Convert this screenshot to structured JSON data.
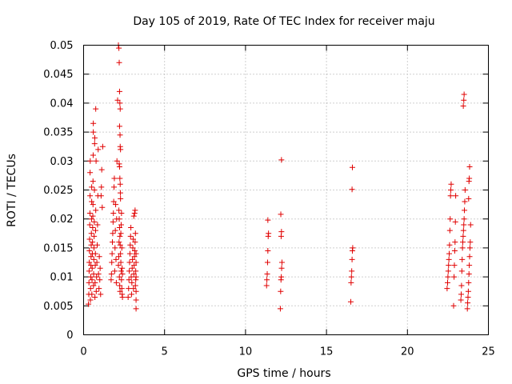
{
  "chart_data": {
    "type": "scatter",
    "title": "Day 105 of 2019, Rate Of TEC Index for receiver maju",
    "xlabel": "GPS time / hours",
    "ylabel": "ROTI / TECUs",
    "xlim": [
      0,
      25
    ],
    "ylim": [
      0,
      0.05
    ],
    "xticks": [
      0,
      5,
      10,
      15,
      20,
      25
    ],
    "xtick_labels": [
      "0",
      "5",
      "10",
      "15",
      "20",
      "25"
    ],
    "yticks": [
      0,
      0.005,
      0.01,
      0.015,
      0.02,
      0.025,
      0.03,
      0.035,
      0.04,
      0.045,
      0.05
    ],
    "ytick_labels": [
      "0",
      "0.005",
      "0.01",
      "0.015",
      "0.02",
      "0.025",
      "0.03",
      "0.035",
      "0.04",
      "0.045",
      "0.05"
    ],
    "grid": true,
    "marker": "+",
    "color": "#e00000",
    "series": [
      {
        "name": "ROTI",
        "points": [
          [
            0.3,
            0.0053
          ],
          [
            0.32,
            0.007
          ],
          [
            0.33,
            0.009
          ],
          [
            0.34,
            0.011
          ],
          [
            0.35,
            0.0125
          ],
          [
            0.36,
            0.0145
          ],
          [
            0.37,
            0.0165
          ],
          [
            0.38,
            0.019
          ],
          [
            0.39,
            0.021
          ],
          [
            0.4,
            0.024
          ],
          [
            0.4,
            0.028
          ],
          [
            0.41,
            0.03
          ],
          [
            0.42,
            0.006
          ],
          [
            0.43,
            0.008
          ],
          [
            0.44,
            0.01
          ],
          [
            0.45,
            0.012
          ],
          [
            0.46,
            0.0135
          ],
          [
            0.47,
            0.0155
          ],
          [
            0.48,
            0.0175
          ],
          [
            0.49,
            0.02
          ],
          [
            0.5,
            0.023
          ],
          [
            0.5,
            0.0255
          ],
          [
            0.51,
            0.007
          ],
          [
            0.52,
            0.0095
          ],
          [
            0.53,
            0.0115
          ],
          [
            0.54,
            0.014
          ],
          [
            0.55,
            0.016
          ],
          [
            0.56,
            0.0185
          ],
          [
            0.57,
            0.0205
          ],
          [
            0.58,
            0.0225
          ],
          [
            0.58,
            0.0265
          ],
          [
            0.59,
            0.031
          ],
          [
            0.6,
            0.035
          ],
          [
            0.6,
            0.0365
          ],
          [
            0.61,
            0.0085
          ],
          [
            0.62,
            0.0105
          ],
          [
            0.63,
            0.013
          ],
          [
            0.64,
            0.015
          ],
          [
            0.65,
            0.017
          ],
          [
            0.66,
            0.0195
          ],
          [
            0.67,
            0.025
          ],
          [
            0.68,
            0.033
          ],
          [
            0.69,
            0.034
          ],
          [
            0.7,
            0.0065
          ],
          [
            0.71,
            0.009
          ],
          [
            0.72,
            0.012
          ],
          [
            0.73,
            0.014
          ],
          [
            0.74,
            0.018
          ],
          [
            0.75,
            0.0215
          ],
          [
            0.75,
            0.039
          ],
          [
            0.77,
            0.03
          ],
          [
            0.78,
            0.0075
          ],
          [
            0.8,
            0.01
          ],
          [
            0.82,
            0.0125
          ],
          [
            0.84,
            0.0155
          ],
          [
            0.86,
            0.019
          ],
          [
            0.88,
            0.024
          ],
          [
            0.9,
            0.032
          ],
          [
            0.92,
            0.0105
          ],
          [
            0.95,
            0.008
          ],
          [
            0.97,
            0.0135
          ],
          [
            1.0,
            0.0095
          ],
          [
            1.02,
            0.0115
          ],
          [
            1.05,
            0.007
          ],
          [
            1.08,
            0.024
          ],
          [
            1.1,
            0.0255
          ],
          [
            1.12,
            0.0285
          ],
          [
            1.15,
            0.022
          ],
          [
            1.18,
            0.0325
          ],
          [
            1.7,
            0.0095
          ],
          [
            1.72,
            0.0105
          ],
          [
            1.74,
            0.0125
          ],
          [
            1.76,
            0.014
          ],
          [
            1.78,
            0.016
          ],
          [
            1.8,
            0.0175
          ],
          [
            1.82,
            0.0195
          ],
          [
            1.84,
            0.021
          ],
          [
            1.86,
            0.023
          ],
          [
            1.88,
            0.0255
          ],
          [
            1.9,
            0.027
          ],
          [
            1.92,
            0.011
          ],
          [
            1.94,
            0.015
          ],
          [
            1.96,
            0.018
          ],
          [
            1.98,
            0.0225
          ],
          [
            2.0,
            0.013
          ],
          [
            2.02,
            0.009
          ],
          [
            2.04,
            0.02
          ],
          [
            2.06,
            0.03
          ],
          [
            2.1,
            0.0405
          ],
          [
            2.15,
            0.05
          ],
          [
            2.18,
            0.0495
          ],
          [
            2.2,
            0.047
          ],
          [
            2.22,
            0.042
          ],
          [
            2.24,
            0.04
          ],
          [
            2.26,
            0.039
          ],
          [
            2.22,
            0.036
          ],
          [
            2.25,
            0.0345
          ],
          [
            2.26,
            0.0325
          ],
          [
            2.28,
            0.032
          ],
          [
            2.2,
            0.0295
          ],
          [
            2.22,
            0.029
          ],
          [
            2.24,
            0.027
          ],
          [
            2.26,
            0.026
          ],
          [
            2.27,
            0.0245
          ],
          [
            2.28,
            0.0235
          ],
          [
            2.18,
            0.0215
          ],
          [
            2.2,
            0.02
          ],
          [
            2.22,
            0.0185
          ],
          [
            2.24,
            0.017
          ],
          [
            2.26,
            0.0155
          ],
          [
            2.28,
            0.014
          ],
          [
            2.3,
            0.0125
          ],
          [
            2.32,
            0.011
          ],
          [
            2.34,
            0.0095
          ],
          [
            2.36,
            0.008
          ],
          [
            2.38,
            0.007
          ],
          [
            2.4,
            0.0065
          ],
          [
            2.15,
            0.012
          ],
          [
            2.17,
            0.0135
          ],
          [
            2.19,
            0.016
          ],
          [
            2.21,
            0.01
          ],
          [
            2.23,
            0.0085
          ],
          [
            2.25,
            0.0075
          ],
          [
            2.3,
            0.0175
          ],
          [
            2.32,
            0.019
          ],
          [
            2.34,
            0.021
          ],
          [
            2.36,
            0.015
          ],
          [
            2.38,
            0.0115
          ],
          [
            2.4,
            0.0105
          ],
          [
            2.75,
            0.0065
          ],
          [
            2.78,
            0.008
          ],
          [
            2.8,
            0.0095
          ],
          [
            2.82,
            0.011
          ],
          [
            2.84,
            0.0125
          ],
          [
            2.86,
            0.014
          ],
          [
            2.88,
            0.0155
          ],
          [
            2.9,
            0.017
          ],
          [
            2.92,
            0.0185
          ],
          [
            2.94,
            0.01
          ],
          [
            2.96,
            0.007
          ],
          [
            2.98,
            0.009
          ],
          [
            3.0,
            0.0115
          ],
          [
            3.02,
            0.013
          ],
          [
            3.04,
            0.015
          ],
          [
            3.06,
            0.0165
          ],
          [
            3.08,
            0.008
          ],
          [
            3.1,
            0.0105
          ],
          [
            3.12,
            0.012
          ],
          [
            3.14,
            0.0135
          ],
          [
            3.16,
            0.0145
          ],
          [
            3.18,
            0.016
          ],
          [
            3.2,
            0.0175
          ],
          [
            3.22,
            0.0095
          ],
          [
            3.1,
            0.0205
          ],
          [
            3.15,
            0.021
          ],
          [
            3.18,
            0.0215
          ],
          [
            3.2,
            0.0085
          ],
          [
            3.22,
            0.011
          ],
          [
            3.24,
            0.0045
          ],
          [
            3.24,
            0.0125
          ],
          [
            3.24,
            0.014
          ],
          [
            3.24,
            0.006
          ],
          [
            3.24,
            0.0075
          ],
          [
            3.24,
            0.01
          ],
          [
            11.3,
            0.0085
          ],
          [
            11.32,
            0.0095
          ],
          [
            11.34,
            0.0105
          ],
          [
            11.36,
            0.0125
          ],
          [
            11.38,
            0.0145
          ],
          [
            11.4,
            0.017
          ],
          [
            11.42,
            0.0175
          ],
          [
            11.38,
            0.0198
          ],
          [
            12.15,
            0.0045
          ],
          [
            12.17,
            0.0075
          ],
          [
            12.19,
            0.0095
          ],
          [
            12.21,
            0.01
          ],
          [
            12.23,
            0.0115
          ],
          [
            12.25,
            0.0125
          ],
          [
            12.2,
            0.017
          ],
          [
            12.22,
            0.0178
          ],
          [
            12.18,
            0.0208
          ],
          [
            12.22,
            0.0302
          ],
          [
            16.5,
            0.0057
          ],
          [
            16.52,
            0.009
          ],
          [
            16.54,
            0.01
          ],
          [
            16.56,
            0.011
          ],
          [
            16.58,
            0.013
          ],
          [
            16.6,
            0.0145
          ],
          [
            16.62,
            0.015
          ],
          [
            16.58,
            0.0251
          ],
          [
            16.6,
            0.0289
          ],
          [
            22.45,
            0.008
          ],
          [
            22.48,
            0.009
          ],
          [
            22.5,
            0.01
          ],
          [
            22.52,
            0.011
          ],
          [
            22.54,
            0.012
          ],
          [
            22.56,
            0.013
          ],
          [
            22.58,
            0.014
          ],
          [
            22.6,
            0.0155
          ],
          [
            22.62,
            0.018
          ],
          [
            22.64,
            0.02
          ],
          [
            22.66,
            0.024
          ],
          [
            22.68,
            0.025
          ],
          [
            22.7,
            0.026
          ],
          [
            22.85,
            0.005
          ],
          [
            22.88,
            0.01
          ],
          [
            22.9,
            0.012
          ],
          [
            22.92,
            0.0145
          ],
          [
            22.94,
            0.016
          ],
          [
            22.96,
            0.0195
          ],
          [
            22.98,
            0.024
          ],
          [
            23.3,
            0.006
          ],
          [
            23.32,
            0.007
          ],
          [
            23.34,
            0.0085
          ],
          [
            23.36,
            0.011
          ],
          [
            23.38,
            0.013
          ],
          [
            23.4,
            0.015
          ],
          [
            23.42,
            0.016
          ],
          [
            23.44,
            0.017
          ],
          [
            23.46,
            0.018
          ],
          [
            23.48,
            0.019
          ],
          [
            23.5,
            0.02
          ],
          [
            23.52,
            0.0215
          ],
          [
            23.54,
            0.023
          ],
          [
            23.56,
            0.025
          ],
          [
            23.45,
            0.0395
          ],
          [
            23.48,
            0.0405
          ],
          [
            23.5,
            0.0415
          ],
          [
            23.7,
            0.0045
          ],
          [
            23.72,
            0.0055
          ],
          [
            23.74,
            0.0065
          ],
          [
            23.76,
            0.0075
          ],
          [
            23.78,
            0.009
          ],
          [
            23.8,
            0.0105
          ],
          [
            23.82,
            0.012
          ],
          [
            23.84,
            0.0135
          ],
          [
            23.86,
            0.015
          ],
          [
            23.88,
            0.016
          ],
          [
            23.9,
            0.019
          ],
          [
            23.78,
            0.0235
          ],
          [
            23.8,
            0.0265
          ],
          [
            23.82,
            0.027
          ],
          [
            23.84,
            0.029
          ]
        ]
      }
    ]
  }
}
